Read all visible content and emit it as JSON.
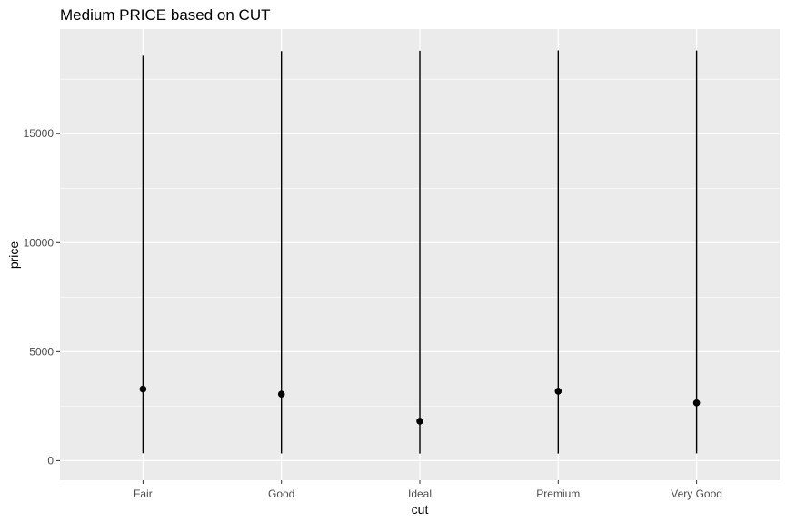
{
  "chart_data": {
    "type": "pointrange",
    "title": "Medium PRICE based on CUT",
    "xlabel": "cut",
    "ylabel": "price",
    "categories": [
      "Fair",
      "Good",
      "Ideal",
      "Premium",
      "Very Good"
    ],
    "series": [
      {
        "median": [
          3282,
          3050,
          1810,
          3185,
          2648
        ],
        "min": [
          337,
          327,
          326,
          326,
          336
        ],
        "max": [
          18574,
          18788,
          18806,
          18823,
          18818
        ]
      }
    ],
    "ylim": [
      -900,
      19800
    ],
    "yticks": [
      0,
      5000,
      10000,
      15000
    ],
    "ytick_labels": [
      "0",
      "5000",
      "10000",
      "15000"
    ],
    "grid": true,
    "panel_background": "#ebebeb",
    "grid_color": "#ffffff",
    "mark_color": "#000000"
  }
}
